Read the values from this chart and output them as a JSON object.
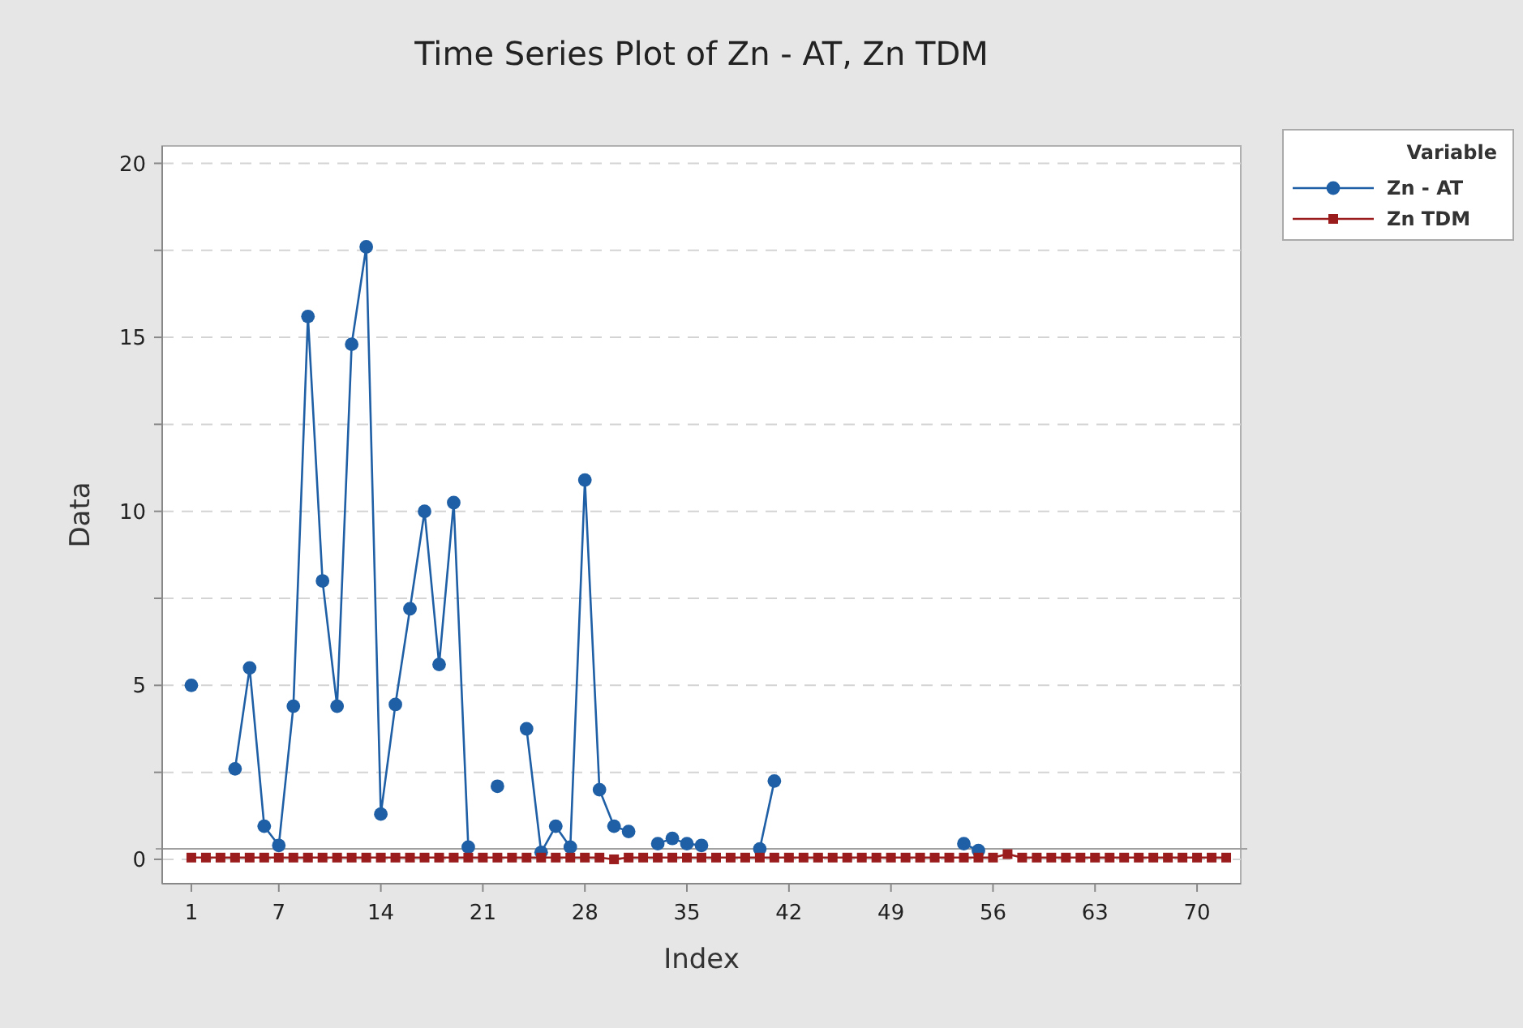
{
  "chart_data": {
    "type": "line",
    "title": "Time Series Plot of Zn - AT, Zn TDM",
    "xlabel": "Index",
    "ylabel": "Data",
    "legend_title": "Variable",
    "legend": "right",
    "grid": "y",
    "x": [
      1,
      2,
      3,
      4,
      5,
      6,
      7,
      8,
      9,
      10,
      11,
      12,
      13,
      14,
      15,
      16,
      17,
      18,
      19,
      20,
      21,
      22,
      23,
      24,
      25,
      26,
      27,
      28,
      29,
      30,
      31,
      32,
      33,
      34,
      35,
      36,
      37,
      38,
      39,
      40,
      41,
      42,
      43,
      44,
      45,
      46,
      47,
      48,
      49,
      50,
      51,
      52,
      53,
      54,
      55,
      56,
      57,
      58,
      59,
      60,
      61,
      62,
      63,
      64,
      65,
      66,
      67,
      68,
      69,
      70,
      71,
      72
    ],
    "xlim": [
      -1,
      73
    ],
    "xticks": [
      1,
      7,
      14,
      21,
      28,
      35,
      42,
      49,
      56,
      63,
      70
    ],
    "ylim": [
      -0.7,
      20.5
    ],
    "yticks": [
      0,
      {
        "value": 2.5,
        "label": null
      },
      5,
      {
        "value": 7.5,
        "label": null
      },
      10,
      {
        "value": 12.5,
        "label": null
      },
      15,
      {
        "value": 17.5,
        "label": null
      },
      20
    ],
    "ref_lines": [
      {
        "axis": "y",
        "value": 0.3,
        "label": null,
        "color": "#a0a0a0"
      }
    ],
    "series": [
      {
        "name": "Zn - AT",
        "color": "#1f5fa5",
        "marker": "circle",
        "values": [
          5.0,
          null,
          null,
          2.6,
          5.5,
          0.95,
          0.4,
          4.4,
          15.6,
          8.0,
          4.4,
          14.8,
          17.6,
          1.3,
          4.45,
          7.2,
          10.0,
          5.6,
          10.25,
          0.35,
          null,
          2.1,
          null,
          3.75,
          0.2,
          0.95,
          0.35,
          10.9,
          2.0,
          0.95,
          0.8,
          null,
          0.45,
          0.6,
          0.45,
          0.4,
          null,
          null,
          null,
          0.3,
          2.25,
          null,
          null,
          null,
          null,
          null,
          null,
          null,
          null,
          null,
          null,
          null,
          null,
          0.45,
          0.25,
          null,
          null,
          null,
          null,
          null,
          null,
          null,
          null,
          null,
          null,
          null,
          null,
          null,
          null,
          null,
          null,
          null
        ]
      },
      {
        "name": "Zn TDM",
        "color": "#9b1c1c",
        "marker": "square",
        "values": [
          0.05,
          0.05,
          0.05,
          0.05,
          0.05,
          0.05,
          0.05,
          0.05,
          0.05,
          0.05,
          0.05,
          0.05,
          0.05,
          0.05,
          0.05,
          0.05,
          0.05,
          0.05,
          0.05,
          0.05,
          0.05,
          0.05,
          0.05,
          0.05,
          0.05,
          0.05,
          0.05,
          0.05,
          0.05,
          0,
          0.05,
          0.05,
          0.05,
          0.05,
          0.05,
          0.05,
          0.05,
          0.05,
          0.05,
          0.05,
          0.05,
          0.05,
          0.05,
          0.05,
          0.05,
          0.05,
          0.05,
          0.05,
          0.05,
          0.05,
          0.05,
          0.05,
          0.05,
          0.05,
          0.05,
          0.05,
          0.15,
          0.05,
          0.05,
          0.05,
          0.05,
          0.05,
          0.05,
          0.05,
          0.05,
          0.05,
          0.05,
          0.05,
          0.05,
          0.05,
          0.05,
          0.05
        ]
      }
    ]
  }
}
